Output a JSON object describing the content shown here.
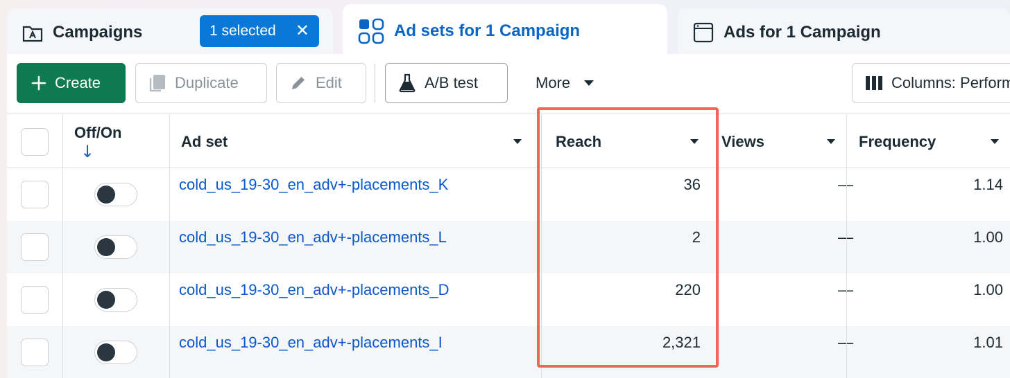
{
  "tabs": {
    "campaigns": {
      "label": "Campaigns",
      "badge": "1 selected",
      "badge_close": "✕"
    },
    "adsets": {
      "label": "Ad sets for 1 Campaign"
    },
    "ads": {
      "label": "Ads for 1 Campaign"
    }
  },
  "toolbar": {
    "create_label": "Create",
    "duplicate_label": "Duplicate",
    "edit_label": "Edit",
    "abtest_label": "A/B test",
    "more_label": "More",
    "columns_label": "Columns: Performance"
  },
  "table": {
    "headers": {
      "offon": "Off/On",
      "offon_sort": "↓",
      "adset": "Ad set",
      "reach": "Reach",
      "views": "Views",
      "frequency": "Frequency"
    },
    "rows": [
      {
        "name": "cold_us_19-30_en_adv+-placements_K",
        "reach": "36",
        "views": "—",
        "frequency": "1.14"
      },
      {
        "name": "cold_us_19-30_en_adv+-placements_L",
        "reach": "2",
        "views": "—",
        "frequency": "1.00"
      },
      {
        "name": "cold_us_19-30_en_adv+-placements_D",
        "reach": "220",
        "views": "—",
        "frequency": "1.00"
      },
      {
        "name": "cold_us_19-30_en_adv+-placements_I",
        "reach": "2,321",
        "views": "—",
        "frequency": "1.01"
      }
    ]
  },
  "colors": {
    "accent": "#0a66c2",
    "create": "#0f7a52",
    "highlight": "#f2645a",
    "link": "#0a58c9"
  }
}
